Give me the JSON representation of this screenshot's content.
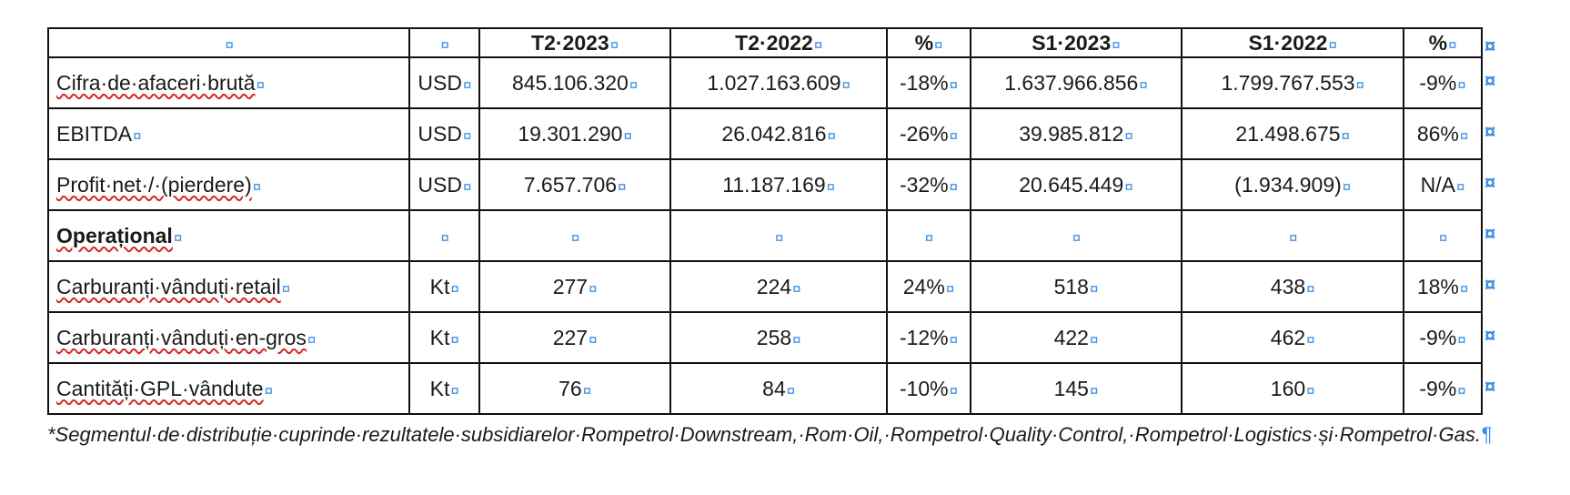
{
  "cell_mark": "¤",
  "header": {
    "label": "",
    "unit": "",
    "t2_2023": "T2·2023",
    "t2_2022": "T2·2022",
    "pct1": "%",
    "s1_2023": "S1·2023",
    "s1_2022": "S1·2022",
    "pct2": "%"
  },
  "rows": [
    {
      "label": "Cifra·de·afaceri·brută",
      "unit": "USD",
      "t2_2023": "845.106.320",
      "t2_2022": "1.027.163.609",
      "pct1": "-18%",
      "s1_2023": "1.637.966.856",
      "s1_2022": "1.799.767.553",
      "pct2": "-9%"
    },
    {
      "label": "EBITDA",
      "unit": "USD",
      "t2_2023": "19.301.290",
      "t2_2022": "26.042.816",
      "pct1": "-26%",
      "s1_2023": "39.985.812",
      "s1_2022": "21.498.675",
      "pct2": "86%"
    },
    {
      "label": "Profit·net·/·(pierdere)",
      "unit": "USD",
      "t2_2023": "7.657.706",
      "t2_2022": "11.187.169",
      "pct1": "-32%",
      "s1_2023": "20.645.449",
      "s1_2022": "(1.934.909)",
      "pct2": "N/A"
    },
    {
      "label": "Operațional",
      "unit": "",
      "t2_2023": "",
      "t2_2022": "",
      "pct1": "",
      "s1_2023": "",
      "s1_2022": "",
      "pct2": ""
    },
    {
      "label": "Carburanți·vânduți·retail",
      "unit": "Kt",
      "t2_2023": "277",
      "t2_2022": "224",
      "pct1": "24%",
      "s1_2023": "518",
      "s1_2022": "438",
      "pct2": "18%"
    },
    {
      "label": "Carburanți·vânduți·en-gros",
      "unit": "Kt",
      "t2_2023": "227",
      "t2_2022": "258",
      "pct1": "-12%",
      "s1_2023": "422",
      "s1_2022": "462",
      "pct2": "-9%"
    },
    {
      "label": "Cantități·GPL·vândute",
      "unit": "Kt",
      "t2_2023": "76",
      "t2_2022": "84",
      "pct1": "-10%",
      "s1_2023": "145",
      "s1_2022": "160",
      "pct2": "-9%"
    }
  ],
  "footnote": "*Segmentul·de·distribuție·cuprinde·rezultatele·subsidiarelor·Rompetrol·Downstream,·Rom·Oil,·Rompetrol·Quality·Control,·Rompetrol·Logistics·și·Rompetrol·Gas.",
  "pilcrow": "¶"
}
